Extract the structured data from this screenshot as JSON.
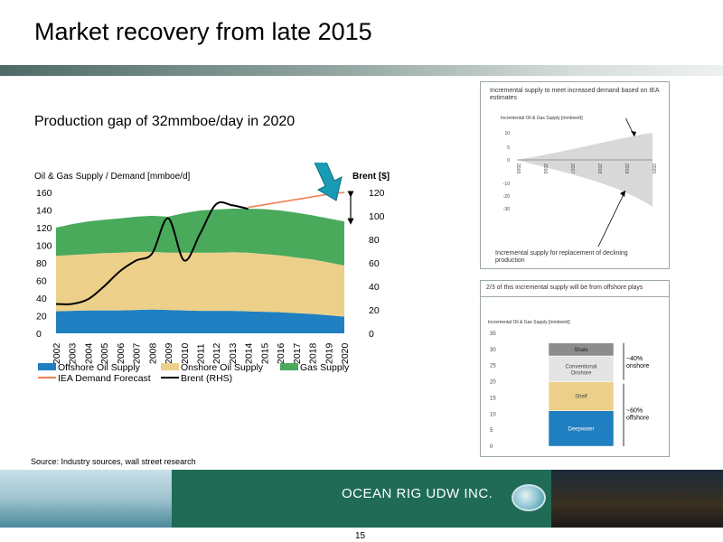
{
  "page_title": "Market recovery from late 2015",
  "subtitle": "Production gap of 32mmboe/day in 2020",
  "source": "Source: Industry sources, wall street research",
  "footer": {
    "company": "OCEAN RIG UDW INC.",
    "page_number": "15"
  },
  "colors": {
    "offshore": "#1f7fc0",
    "onshore": "#ecd08a",
    "gas": "#4aaa5c",
    "demand": "#f08050",
    "brent": "#000000",
    "arrow": "#1a9bb5"
  },
  "chart_data": [
    {
      "type": "area",
      "title": "",
      "ylabel": "Oil & Gas Supply / Demand [mmboe/d]",
      "y2label": "Brent [$]",
      "x": [
        "2002",
        "2003",
        "2004",
        "2005",
        "2006",
        "2007",
        "2008",
        "2009",
        "2010",
        "2011",
        "2012",
        "2013",
        "2014",
        "2015",
        "2016",
        "2017",
        "2018",
        "2019",
        "2020"
      ],
      "ylim": [
        0,
        160
      ],
      "y2lim": [
        0,
        120
      ],
      "yticks": [
        "160",
        "140",
        "120",
        "100",
        "80",
        "60",
        "40",
        "20",
        "0"
      ],
      "y2ticks": [
        "120",
        "100",
        "80",
        "60",
        "40",
        "20",
        "0"
      ],
      "series": [
        {
          "name": "Offshore Oil Supply",
          "kind": "stacked_area",
          "values": [
            25,
            25.5,
            26,
            26,
            26,
            26.5,
            27,
            26.5,
            26,
            25.5,
            25.5,
            25.5,
            25,
            24.5,
            24,
            23,
            22,
            20.5,
            19
          ]
        },
        {
          "name": "Onshore Oil Supply",
          "kind": "stacked_area",
          "values": [
            63,
            63.5,
            64,
            65,
            65.5,
            66,
            65.5,
            65,
            65.5,
            66,
            66,
            66.5,
            66.5,
            65.5,
            64.5,
            63,
            62,
            60,
            58
          ]
        },
        {
          "name": "Gas Supply",
          "kind": "stacked_area",
          "values": [
            32,
            35,
            37,
            38,
            39,
            40,
            41,
            41,
            45,
            48,
            49,
            49.5,
            50,
            51,
            51,
            51,
            50,
            50,
            50
          ]
        },
        {
          "name": "IEA Demand Forecast",
          "kind": "line",
          "values": [
            null,
            null,
            null,
            null,
            null,
            null,
            null,
            null,
            null,
            null,
            null,
            null,
            143,
            146,
            149,
            152,
            155,
            158,
            160
          ]
        },
        {
          "name": "Brent (RHS)",
          "kind": "line",
          "axis": "right",
          "values": [
            25,
            25,
            29,
            40,
            53,
            62,
            68,
            98,
            62,
            85,
            110,
            109,
            106,
            null,
            null,
            null,
            null,
            null,
            null
          ]
        }
      ],
      "legend": [
        "Offshore Oil Supply",
        "Onshore Oil Supply",
        "Gas Supply",
        "IEA Demand Forecast",
        "Brent (RHS)"
      ]
    },
    {
      "type": "area",
      "annotation_top": "Incremental supply to meet increased demand based on IEA estimates",
      "annotation_bottom": "Incremental supply for replacement of declining production",
      "ylabel": "Incremental Oil & Gas Supply [mmboe/d]",
      "x": [
        "2015",
        "2016",
        "2017",
        "2018",
        "2019",
        "2020"
      ],
      "yticks": [
        "10",
        "5",
        "0",
        "-10",
        "-20",
        "-30"
      ]
    },
    {
      "type": "bar",
      "title": "2/3 of this incremental supply will be from offshore plays",
      "ylabel": "Incremental Oil & Gas Supply [mmboe/d]",
      "yticks": [
        "35",
        "30",
        "25",
        "20",
        "15",
        "10",
        "5",
        "0"
      ],
      "ylim": [
        0,
        35
      ],
      "segments": [
        {
          "name": "Deepwater",
          "value": 11
        },
        {
          "name": "Shelf",
          "value": 9
        },
        {
          "name": "Conventional Onshore",
          "value": 8
        },
        {
          "name": "Shale",
          "value": 4
        }
      ],
      "brackets": [
        {
          "label": "~40% onshore"
        },
        {
          "label": "~60% offshore"
        }
      ]
    }
  ]
}
